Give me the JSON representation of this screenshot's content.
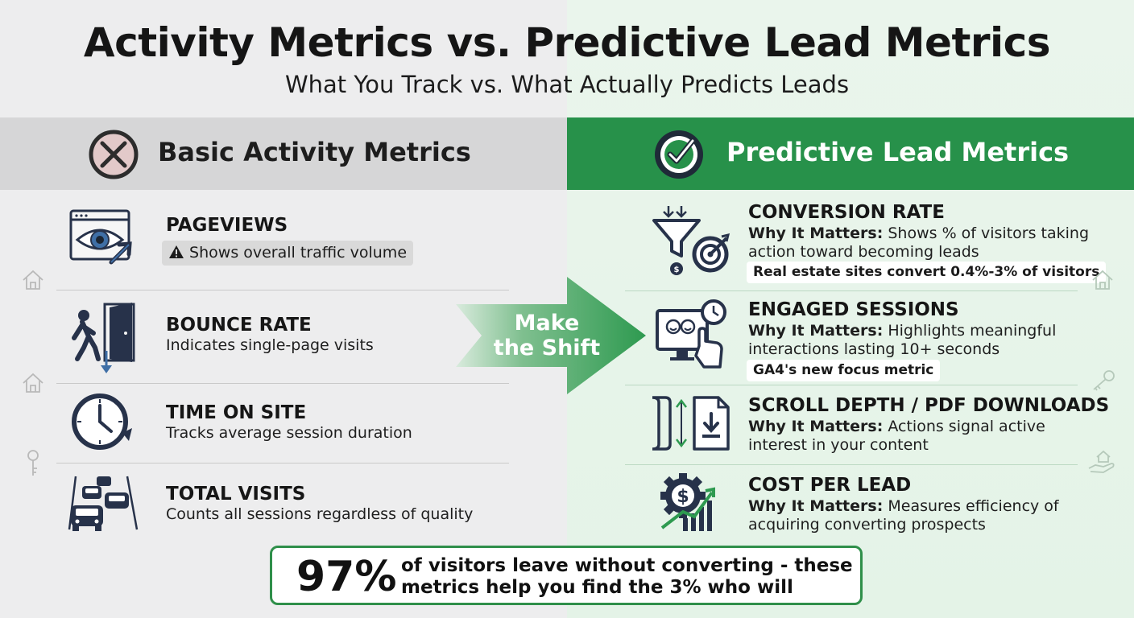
{
  "header": {
    "title": "Activity Metrics vs. Predictive Lead Metrics",
    "subtitle": "What You Track vs. What Actually Predicts Leads"
  },
  "left": {
    "heading": "Basic Activity Metrics",
    "heading_icon": "x-circle-icon",
    "items": [
      {
        "title": "PAGEVIEWS",
        "badge": "Shows overall traffic volume",
        "badge_icon": "warning-icon",
        "icon": "eye-browser-icon"
      },
      {
        "title": "BOUNCE RATE",
        "desc": "Indicates single-page visits",
        "icon": "person-exit-door-icon"
      },
      {
        "title": "TIME ON SITE",
        "desc": "Tracks average session duration",
        "icon": "clock-icon"
      },
      {
        "title": "TOTAL VISITS",
        "desc": "Counts all sessions regardless of quality",
        "icon": "cars-traffic-icon"
      }
    ]
  },
  "arrow": {
    "line1": "Make",
    "line2": "the Shift"
  },
  "right": {
    "heading": "Predictive Lead Metrics",
    "heading_icon": "check-circle-icon",
    "why_label": "Why It Matters:",
    "items": [
      {
        "title": "CONVERSION RATE",
        "line1": "Shows % of visitors taking",
        "line2": "action toward becoming leads",
        "note": "Real estate sites convert 0.4%-3% of visitors",
        "icon": "funnel-target-icon"
      },
      {
        "title": "ENGAGED SESSIONS",
        "line1": "Highlights meaningful",
        "line2": "interactions lasting 10+ seconds",
        "note": "GA4's new focus metric",
        "icon": "monitor-click-icon"
      },
      {
        "title": "SCROLL DEPTH / PDF DOWNLOADS",
        "line1": "Actions signal active",
        "line2": "interest in your content",
        "icon": "scroll-download-icon"
      },
      {
        "title": "COST PER LEAD",
        "line1": "Measures efficiency of",
        "line2": "acquiring converting prospects",
        "icon": "gear-dollar-chart-icon"
      }
    ]
  },
  "footer": {
    "percent": "97%",
    "line1": "of visitors leave without converting - these",
    "line2": "metrics help you find the 3% who will"
  },
  "colors": {
    "green": "#27914a",
    "left_header": "#d6d6d7",
    "navy": "#27324a"
  }
}
